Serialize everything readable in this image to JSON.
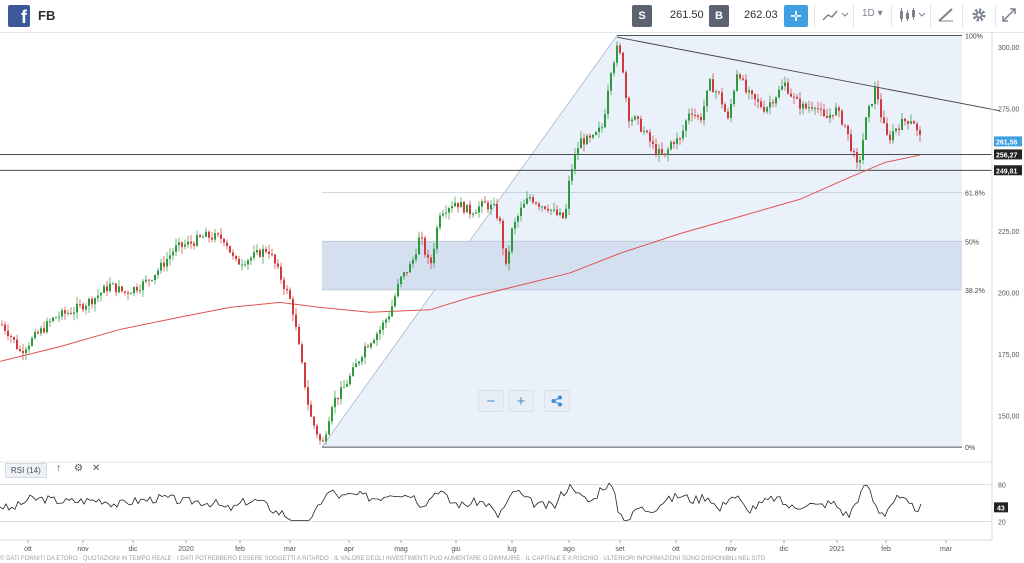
{
  "header": {
    "logo_letter": "f",
    "symbol": "FB",
    "sell_label": "S",
    "sell_price": "261.50",
    "buy_label": "B",
    "buy_price": "262.03",
    "interval": "1D"
  },
  "icons": {
    "crosshair": "crosshair-icon",
    "chart_type": "chart-type-icon",
    "candles": "candlestick-icon",
    "draw": "draw-tools-icon",
    "settings": "gear-icon",
    "fullscreen": "expand-icon"
  },
  "colors": {
    "bull": "#2e9a3e",
    "bear": "#d03a3a",
    "ma": "#e05252",
    "fib_fill": "#dbe6f5",
    "accent": "#3ea0e0"
  },
  "price_axis": {
    "ticks": [
      "300,00",
      "275,00",
      "250,00",
      "225,00",
      "200,00",
      "175,00",
      "150,00"
    ],
    "ticks_values": [
      300,
      275,
      250,
      225,
      200,
      175,
      150
    ]
  },
  "price_tags": [
    {
      "label": "261,56",
      "value": 261.56,
      "color": "#3ea0e0"
    },
    {
      "label": "256,27",
      "value": 256.27,
      "color": "#222222"
    },
    {
      "label": "249,81",
      "value": 249.81,
      "color": "#222222"
    }
  ],
  "fibonacci": {
    "levels": [
      {
        "label": "100%",
        "value": 1.0
      },
      {
        "label": "61.8%",
        "value": 0.618
      },
      {
        "label": "50%",
        "value": 0.5
      },
      {
        "label": "38.2%",
        "value": 0.382
      },
      {
        "label": "0%",
        "value": 0.0
      }
    ],
    "low": 137.1,
    "high": 304.7
  },
  "x_axis": {
    "labels": [
      "ott",
      "nov",
      "dic",
      "2020",
      "feb",
      "mar",
      "apr",
      "mag",
      "giu",
      "lug",
      "ago",
      "set",
      "ott",
      "nov",
      "dic",
      "2021",
      "feb",
      "mar"
    ]
  },
  "rsi": {
    "tag": "RSI (14)",
    "levels": [
      "80",
      "20"
    ],
    "current": "43"
  },
  "zoom": {
    "minus": "−",
    "plus": "+"
  },
  "footer_text": "© DATI FORNITI DA ETORO · QUOTAZIONI IN TEMPO REALE · I DATI POTREBBERO ESSERE SOGGETTI A RITARDO · IL VALORE DEGLI INVESTIMENTI PUÒ AUMENTARE O DIMINUIRE · IL CAPITALE È A RISCHIO · ULTERIORI INFORMAZIONI SONO DISPONIBILI NEL SITO",
  "chart_data": {
    "type": "candlestick",
    "x_labels": [
      "ott",
      "nov",
      "dic",
      "2020",
      "feb",
      "mar",
      "apr",
      "mag",
      "giu",
      "lug",
      "ago",
      "set",
      "ott",
      "nov",
      "dic",
      "2021",
      "feb",
      "mar"
    ],
    "anchors": [
      [
        0,
        188
      ],
      [
        10,
        183
      ],
      [
        20,
        176
      ],
      [
        30,
        180
      ],
      [
        40,
        184
      ],
      [
        55,
        190
      ],
      [
        75,
        193
      ],
      [
        95,
        198
      ],
      [
        110,
        203
      ],
      [
        125,
        200
      ],
      [
        145,
        204
      ],
      [
        160,
        210
      ],
      [
        175,
        218
      ],
      [
        190,
        220
      ],
      [
        205,
        223
      ],
      [
        225,
        222
      ],
      [
        235,
        212
      ],
      [
        250,
        214
      ],
      [
        268,
        218
      ],
      [
        282,
        205
      ],
      [
        292,
        195
      ],
      [
        300,
        175
      ],
      [
        310,
        150
      ],
      [
        318,
        142
      ],
      [
        322,
        137
      ],
      [
        332,
        155
      ],
      [
        342,
        160
      ],
      [
        352,
        167
      ],
      [
        365,
        178
      ],
      [
        380,
        185
      ],
      [
        390,
        192
      ],
      [
        400,
        205
      ],
      [
        412,
        212
      ],
      [
        420,
        223
      ],
      [
        430,
        210
      ],
      [
        440,
        233
      ],
      [
        455,
        237
      ],
      [
        470,
        233
      ],
      [
        485,
        236
      ],
      [
        495,
        234
      ],
      [
        500,
        228
      ],
      [
        506,
        210
      ],
      [
        512,
        225
      ],
      [
        520,
        233
      ],
      [
        530,
        239
      ],
      [
        540,
        236
      ],
      [
        548,
        235
      ],
      [
        555,
        232
      ],
      [
        565,
        230
      ],
      [
        570,
        248
      ],
      [
        580,
        262
      ],
      [
        592,
        262
      ],
      [
        603,
        268
      ],
      [
        610,
        290
      ],
      [
        617,
        299
      ],
      [
        622,
        295
      ],
      [
        628,
        272
      ],
      [
        636,
        270
      ],
      [
        645,
        265
      ],
      [
        655,
        258
      ],
      [
        665,
        255
      ],
      [
        672,
        262
      ],
      [
        680,
        262
      ],
      [
        690,
        275
      ],
      [
        700,
        270
      ],
      [
        710,
        285
      ],
      [
        720,
        280
      ],
      [
        728,
        270
      ],
      [
        738,
        292
      ],
      [
        745,
        282
      ],
      [
        755,
        278
      ],
      [
        765,
        275
      ],
      [
        775,
        280
      ],
      [
        785,
        285
      ],
      [
        795,
        278
      ],
      [
        805,
        275
      ],
      [
        815,
        277
      ],
      [
        825,
        270
      ],
      [
        835,
        275
      ],
      [
        845,
        268
      ],
      [
        852,
        258
      ],
      [
        858,
        250
      ],
      [
        866,
        270
      ],
      [
        876,
        284
      ],
      [
        882,
        270
      ],
      [
        888,
        262
      ],
      [
        895,
        267
      ],
      [
        905,
        270
      ],
      [
        913,
        271
      ],
      [
        918,
        264
      ],
      [
        922,
        262
      ]
    ],
    "ma": [
      [
        0,
        172
      ],
      [
        60,
        178
      ],
      [
        120,
        185
      ],
      [
        180,
        190
      ],
      [
        230,
        194
      ],
      [
        280,
        196
      ],
      [
        320,
        194
      ],
      [
        370,
        192
      ],
      [
        430,
        193
      ],
      [
        470,
        198
      ],
      [
        520,
        203
      ],
      [
        570,
        208
      ],
      [
        620,
        216
      ],
      [
        680,
        224
      ],
      [
        740,
        231
      ],
      [
        800,
        238
      ],
      [
        850,
        247
      ],
      [
        885,
        253
      ],
      [
        920,
        256
      ]
    ],
    "trendline": [
      [
        617,
        304
      ],
      [
        1000,
        274
      ]
    ],
    "rsi_level_hi": 80,
    "rsi_level_lo": 20,
    "rsi_current": 43
  }
}
